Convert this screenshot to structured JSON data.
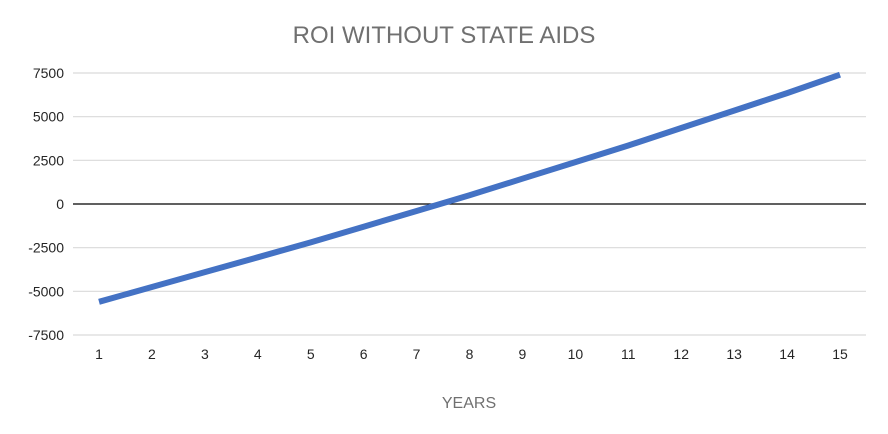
{
  "chart_data": {
    "type": "line",
    "title": "ROI WITHOUT STATE AIDS",
    "xlabel": "YEARS",
    "ylabel": "",
    "categories": [
      "1",
      "2",
      "3",
      "4",
      "5",
      "6",
      "7",
      "8",
      "9",
      "10",
      "11",
      "12",
      "13",
      "14",
      "15"
    ],
    "x": [
      1,
      2,
      3,
      4,
      5,
      6,
      7,
      8,
      9,
      10,
      11,
      12,
      13,
      14,
      15
    ],
    "series": [
      {
        "values": [
          -5600,
          -4750,
          -3900,
          -3050,
          -2200,
          -1300,
          -400,
          500,
          1450,
          2400,
          3350,
          4350,
          5350,
          6350,
          7400
        ],
        "color": "#4472C4"
      }
    ],
    "ylim": [
      -7500,
      7500
    ],
    "yticks": [
      7500,
      5000,
      2500,
      0,
      -2500,
      -5000,
      -7500
    ],
    "ytick_labels": [
      "7500",
      "5000",
      "2500",
      "0",
      "-2500",
      "-5000",
      "-7500"
    ],
    "grid": true,
    "legend": "none",
    "colors": {
      "gridline": "#d9d9d9",
      "zero_line": "#000000",
      "title": "#707070",
      "tick_label": "#262626"
    }
  }
}
